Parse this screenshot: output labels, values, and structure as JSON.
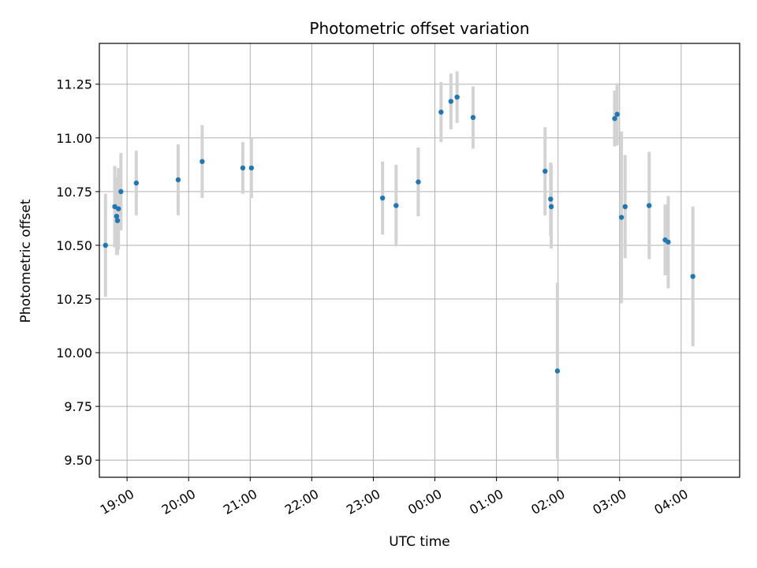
{
  "chart_data": {
    "type": "scatter",
    "title": "Photometric offset variation",
    "xlabel": "UTC time",
    "ylabel": "Photometric offset",
    "x_unit": "hour",
    "xlim": [
      18.55,
      28.95
    ],
    "ylim": [
      9.42,
      11.44
    ],
    "grid": true,
    "legend": "none",
    "x_ticks": [
      {
        "x": 19,
        "label": "19:00"
      },
      {
        "x": 20,
        "label": "20:00"
      },
      {
        "x": 21,
        "label": "21:00"
      },
      {
        "x": 22,
        "label": "22:00"
      },
      {
        "x": 23,
        "label": "23:00"
      },
      {
        "x": 24,
        "label": "00:00"
      },
      {
        "x": 25,
        "label": "01:00"
      },
      {
        "x": 26,
        "label": "02:00"
      },
      {
        "x": 27,
        "label": "03:00"
      },
      {
        "x": 28,
        "label": "04:00"
      }
    ],
    "y_ticks": [
      {
        "y": 9.5,
        "label": "9.50"
      },
      {
        "y": 9.75,
        "label": "9.75"
      },
      {
        "y": 10.0,
        "label": "10.00"
      },
      {
        "y": 10.25,
        "label": "10.25"
      },
      {
        "y": 10.5,
        "label": "10.50"
      },
      {
        "y": 10.75,
        "label": "10.75"
      },
      {
        "y": 11.0,
        "label": "11.00"
      },
      {
        "y": 11.25,
        "label": "11.25"
      }
    ],
    "colors": {
      "point": "#1f77b4",
      "errorbar": "#d3d3d3",
      "grid": "#b0b0b0"
    },
    "points": [
      {
        "x": 18.65,
        "y": 10.5,
        "err": 0.24
      },
      {
        "x": 18.8,
        "y": 10.68,
        "err": 0.19
      },
      {
        "x": 18.83,
        "y": 10.635,
        "err": 0.18
      },
      {
        "x": 18.845,
        "y": 10.615,
        "err": 0.16
      },
      {
        "x": 18.86,
        "y": 10.67,
        "err": 0.19
      },
      {
        "x": 18.9,
        "y": 10.75,
        "err": 0.18
      },
      {
        "x": 19.15,
        "y": 10.79,
        "err": 0.15
      },
      {
        "x": 19.83,
        "y": 10.805,
        "err": 0.165
      },
      {
        "x": 20.22,
        "y": 10.89,
        "err": 0.17
      },
      {
        "x": 20.88,
        "y": 10.86,
        "err": 0.12
      },
      {
        "x": 21.02,
        "y": 10.86,
        "err": 0.14
      },
      {
        "x": 23.15,
        "y": 10.72,
        "err": 0.17
      },
      {
        "x": 23.37,
        "y": 10.685,
        "err": 0.19
      },
      {
        "x": 23.73,
        "y": 10.795,
        "err": 0.16
      },
      {
        "x": 24.1,
        "y": 11.12,
        "err": 0.14
      },
      {
        "x": 24.26,
        "y": 11.17,
        "err": 0.13
      },
      {
        "x": 24.36,
        "y": 11.19,
        "err": 0.12
      },
      {
        "x": 24.62,
        "y": 11.095,
        "err": 0.145
      },
      {
        "x": 25.79,
        "y": 10.845,
        "err": 0.205
      },
      {
        "x": 25.88,
        "y": 10.715,
        "err": 0.17
      },
      {
        "x": 25.89,
        "y": 10.68,
        "err": 0.195
      },
      {
        "x": 25.99,
        "y": 9.915,
        "err": 0.41
      },
      {
        "x": 26.92,
        "y": 11.09,
        "err": 0.13
      },
      {
        "x": 26.96,
        "y": 11.11,
        "err": 0.145
      },
      {
        "x": 27.03,
        "y": 10.63,
        "err": 0.4
      },
      {
        "x": 27.09,
        "y": 10.68,
        "err": 0.24
      },
      {
        "x": 27.48,
        "y": 10.685,
        "err": 0.25
      },
      {
        "x": 27.74,
        "y": 10.525,
        "err": 0.165
      },
      {
        "x": 27.79,
        "y": 10.515,
        "err": 0.215
      },
      {
        "x": 28.19,
        "y": 10.355,
        "err": 0.325
      }
    ]
  }
}
